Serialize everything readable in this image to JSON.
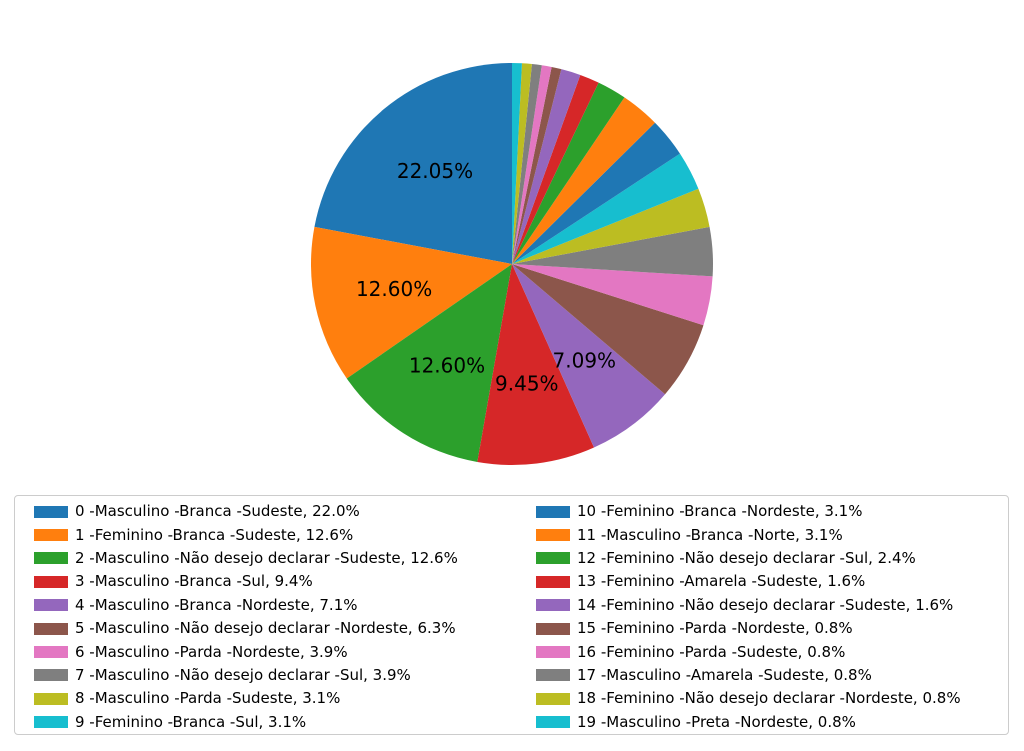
{
  "chart_data": {
    "type": "pie",
    "title": "",
    "start_angle_deg": 90,
    "direction": "counterclockwise",
    "autopct_format": "%.2f%%",
    "legend_position": "bottom",
    "legend_columns": 2,
    "background_color": "#ffffff",
    "legend_border_color": "#cccccc",
    "slices": [
      {
        "id": 0,
        "legend_label": "0 -Masculino -Branca -Sudeste, 22.0%",
        "percent": 22.05,
        "autopct": "22.05%",
        "color": "#1f77b4"
      },
      {
        "id": 1,
        "legend_label": "1 -Feminino -Branca -Sudeste, 12.6%",
        "percent": 12.6,
        "autopct": "12.60%",
        "color": "#ff7f0e"
      },
      {
        "id": 2,
        "legend_label": "2 -Masculino -Não desejo declarar -Sudeste, 12.6%",
        "percent": 12.6,
        "autopct": "12.60%",
        "color": "#2ca02c"
      },
      {
        "id": 3,
        "legend_label": "3 -Masculino -Branca -Sul, 9.4%",
        "percent": 9.45,
        "autopct": "9.45%",
        "color": "#d62728"
      },
      {
        "id": 4,
        "legend_label": "4 -Masculino -Branca -Nordeste, 7.1%",
        "percent": 7.09,
        "autopct": "7.09%",
        "color": "#9467bd"
      },
      {
        "id": 5,
        "legend_label": "5 -Masculino -Não desejo declarar -Nordeste, 6.3%",
        "percent": 6.3,
        "autopct": null,
        "color": "#8c564b"
      },
      {
        "id": 6,
        "legend_label": "6 -Masculino -Parda -Nordeste, 3.9%",
        "percent": 3.94,
        "autopct": null,
        "color": "#e377c2"
      },
      {
        "id": 7,
        "legend_label": "7 -Masculino -Não desejo declarar -Sul, 3.9%",
        "percent": 3.94,
        "autopct": null,
        "color": "#7f7f7f"
      },
      {
        "id": 8,
        "legend_label": "8 -Masculino -Parda -Sudeste, 3.1%",
        "percent": 3.15,
        "autopct": null,
        "color": "#bcbd22"
      },
      {
        "id": 9,
        "legend_label": "9 -Feminino -Branca -Sul, 3.1%",
        "percent": 3.15,
        "autopct": null,
        "color": "#17becf"
      },
      {
        "id": 10,
        "legend_label": "10 -Feminino -Branca -Nordeste, 3.1%",
        "percent": 3.15,
        "autopct": null,
        "color": "#1f77b4"
      },
      {
        "id": 11,
        "legend_label": "11 -Masculino -Branca -Norte, 3.1%",
        "percent": 3.15,
        "autopct": null,
        "color": "#ff7f0e"
      },
      {
        "id": 12,
        "legend_label": "12 -Feminino -Não desejo declarar -Sul, 2.4%",
        "percent": 2.36,
        "autopct": null,
        "color": "#2ca02c"
      },
      {
        "id": 13,
        "legend_label": "13 -Feminino -Amarela -Sudeste, 1.6%",
        "percent": 1.57,
        "autopct": null,
        "color": "#d62728"
      },
      {
        "id": 14,
        "legend_label": "14 -Feminino -Não desejo declarar -Sudeste, 1.6%",
        "percent": 1.57,
        "autopct": null,
        "color": "#9467bd"
      },
      {
        "id": 15,
        "legend_label": "15 -Feminino -Parda -Nordeste, 0.8%",
        "percent": 0.79,
        "autopct": null,
        "color": "#8c564b"
      },
      {
        "id": 16,
        "legend_label": "16 -Feminino -Parda -Sudeste, 0.8%",
        "percent": 0.79,
        "autopct": null,
        "color": "#e377c2"
      },
      {
        "id": 17,
        "legend_label": "17 -Masculino -Amarela -Sudeste, 0.8%",
        "percent": 0.79,
        "autopct": null,
        "color": "#7f7f7f"
      },
      {
        "id": 18,
        "legend_label": "18 -Feminino -Não desejo declarar -Nordeste, 0.8%",
        "percent": 0.79,
        "autopct": null,
        "color": "#bcbd22"
      },
      {
        "id": 19,
        "legend_label": "19 -Masculino -Preta -Nordeste, 0.8%",
        "percent": 0.79,
        "autopct": null,
        "color": "#17becf"
      }
    ]
  }
}
